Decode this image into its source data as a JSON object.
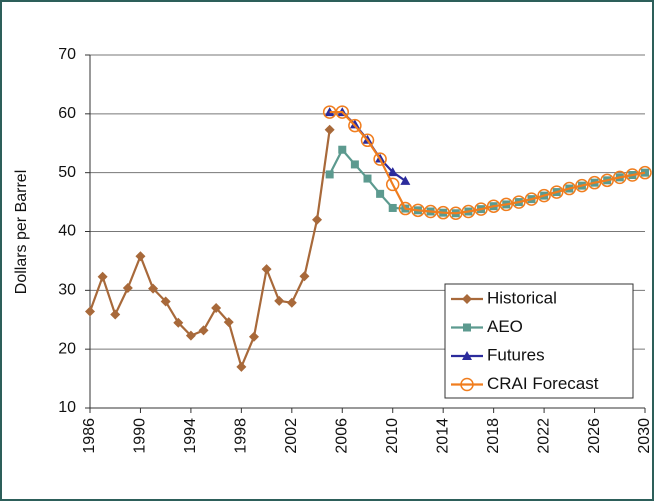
{
  "chart_data": {
    "type": "line",
    "y_label": "Dollars per Barrel",
    "xlim": [
      1986,
      2030
    ],
    "xticks": [
      1986,
      1990,
      1994,
      1998,
      2002,
      2006,
      2010,
      2014,
      2018,
      2022,
      2026,
      2030
    ],
    "ylim": [
      10,
      70
    ],
    "yticks": [
      10,
      20,
      30,
      40,
      50,
      60,
      70
    ],
    "grid": true,
    "legend": "lower right",
    "series": [
      {
        "name": "Historical",
        "color": "#a8693a",
        "marker": "diamond",
        "x": [
          1986,
          1987,
          1988,
          1989,
          1990,
          1991,
          1992,
          1993,
          1994,
          1995,
          1996,
          1997,
          1998,
          1999,
          2000,
          2001,
          2002,
          2003,
          2004,
          2005
        ],
        "values": [
          26.4,
          32.3,
          25.9,
          30.4,
          35.8,
          30.3,
          28.1,
          24.5,
          22.3,
          23.2,
          27,
          24.6,
          17,
          22.1,
          33.6,
          28.2,
          27.9,
          32.4,
          42,
          57.3
        ]
      },
      {
        "name": "AEO",
        "color": "#5c9a8f",
        "marker": "square",
        "x": [
          2005,
          2006,
          2007,
          2008,
          2009,
          2010,
          2011,
          2012,
          2013,
          2014,
          2015,
          2016,
          2017,
          2018,
          2019,
          2020,
          2021,
          2022,
          2023,
          2024,
          2025,
          2026,
          2027,
          2028,
          2029,
          2030
        ],
        "values": [
          49.7,
          53.9,
          51.4,
          49,
          46.4,
          44,
          43.9,
          43.6,
          43.4,
          43.2,
          43.1,
          43.4,
          43.8,
          44.3,
          44.6,
          45,
          45.5,
          46.1,
          46.7,
          47.3,
          47.8,
          48.3,
          48.7,
          49.2,
          49.6,
          50
        ]
      },
      {
        "name": "Futures",
        "color": "#2b2b9c",
        "marker": "triangle",
        "x": [
          2005,
          2006,
          2007,
          2008,
          2009,
          2010,
          2011
        ],
        "values": [
          60.3,
          60.3,
          58.2,
          55.6,
          52.4,
          50.1,
          48.6
        ]
      },
      {
        "name": "CRAI Forecast",
        "color": "#f07d1e",
        "marker": "circle",
        "x": [
          2005,
          2006,
          2007,
          2008,
          2009,
          2010,
          2011,
          2012,
          2013,
          2014,
          2015,
          2016,
          2017,
          2018,
          2019,
          2020,
          2021,
          2022,
          2023,
          2024,
          2025,
          2026,
          2027,
          2028,
          2029,
          2030
        ],
        "values": [
          60.3,
          60.3,
          58,
          55.5,
          52.3,
          48,
          43.9,
          43.6,
          43.4,
          43.2,
          43.1,
          43.4,
          43.8,
          44.3,
          44.6,
          45,
          45.5,
          46.1,
          46.7,
          47.3,
          47.8,
          48.3,
          48.7,
          49.2,
          49.6,
          50
        ]
      }
    ]
  }
}
